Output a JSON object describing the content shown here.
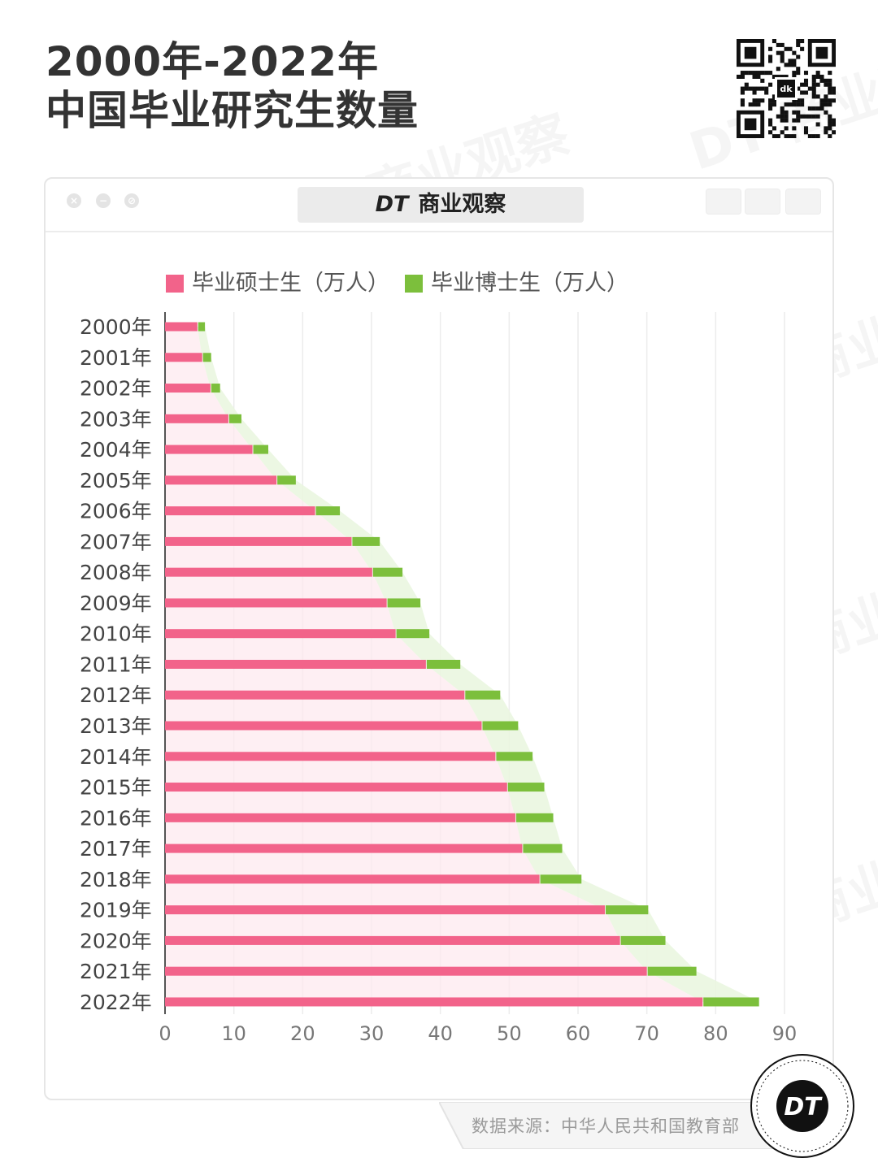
{
  "title": {
    "line1": "2000年-2022年",
    "line2": "中国毕业研究生数量"
  },
  "brand": {
    "logo_text": "DT",
    "name": "商业观察",
    "watermark": "DT 商业观察"
  },
  "qr_code": {
    "center_label": "dk"
  },
  "source": {
    "text": "数据来源：中华人民共和国教育部"
  },
  "colors": {
    "masters": "#f2638a",
    "doctors": "#7cbf3c",
    "masters_fill": "#fde9ef",
    "doctors_fill": "#eaf6e0"
  },
  "chart_data": {
    "type": "bar",
    "orientation": "horizontal",
    "stacked": true,
    "categories": [
      "2000年",
      "2001年",
      "2002年",
      "2003年",
      "2004年",
      "2005年",
      "2006年",
      "2007年",
      "2008年",
      "2009年",
      "2010年",
      "2011年",
      "2012年",
      "2013年",
      "2014年",
      "2015年",
      "2016年",
      "2017年",
      "2018年",
      "2019年",
      "2020年",
      "2021年",
      "2022年"
    ],
    "series": [
      {
        "name": "毕业硕士生（万人）",
        "color": "#f2638a",
        "values": [
          4.7,
          5.4,
          6.6,
          9.2,
          12.7,
          16.2,
          21.8,
          27.1,
          30.1,
          32.2,
          33.5,
          37.9,
          43.5,
          46.0,
          48.0,
          49.7,
          50.9,
          51.9,
          54.4,
          63.9,
          66.1,
          70.0,
          78.1
        ]
      },
      {
        "name": "毕业博士生（万人）",
        "color": "#7cbf3c",
        "values": [
          1.1,
          1.3,
          1.4,
          1.9,
          2.3,
          2.8,
          3.6,
          4.1,
          4.4,
          4.9,
          4.9,
          5.0,
          5.2,
          5.3,
          5.4,
          5.4,
          5.5,
          5.8,
          6.1,
          6.3,
          6.6,
          7.2,
          8.2
        ]
      }
    ],
    "x_ticks": [
      "0",
      "10",
      "20",
      "30",
      "40",
      "50",
      "60",
      "70",
      "80",
      "90"
    ],
    "xlim": [
      0,
      90
    ],
    "grid": true,
    "legend_position": "top"
  }
}
